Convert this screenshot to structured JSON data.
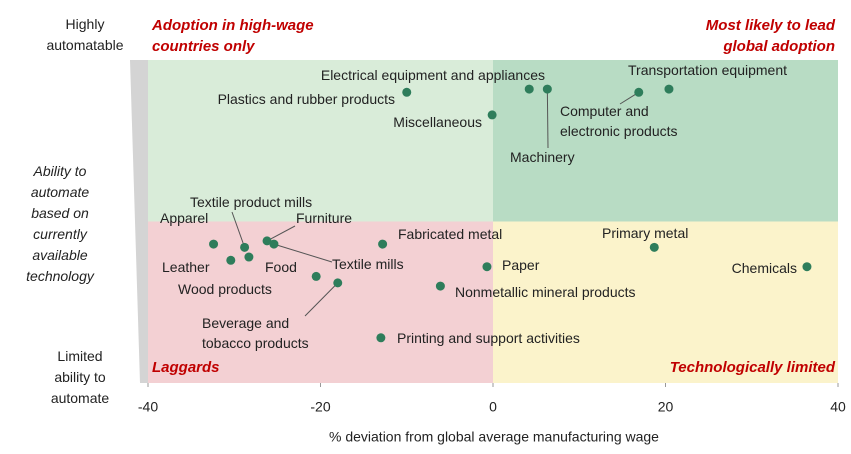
{
  "chart_data": {
    "type": "scatter",
    "xlabel": "% deviation from global average manufacturing wage",
    "xlim": [
      -40,
      40
    ],
    "xticks": [
      -40,
      -20,
      0,
      20,
      40
    ],
    "ylim": [
      0,
      100
    ],
    "color": "#2e7d5b",
    "y_axis_labels": [
      [
        "Highly",
        "automatable"
      ],
      [
        "Ability to",
        "automate",
        "based on",
        "currently",
        "available",
        "technology"
      ],
      [
        "Limited",
        "ability to",
        "automate"
      ]
    ],
    "quadrants": [
      {
        "label": [
          "Adoption in high-wage",
          "countries only"
        ],
        "color": "#d9ecd9"
      },
      {
        "label": [
          "Most likely to lead",
          "global adoption"
        ],
        "color": "#b8dcc4"
      },
      {
        "label": [
          "Laggards"
        ],
        "color": "#f3d0d3"
      },
      {
        "label": [
          "Technologically limited"
        ],
        "color": "#fbf3cb"
      }
    ],
    "point_labels": [
      [
        "Electrical equipment and appliances"
      ],
      [
        "Machinery"
      ],
      [
        "Computer and",
        "electronic products"
      ],
      [
        "Transportation equipment"
      ],
      [
        "Plastics and rubber products"
      ],
      [
        "Miscellaneous"
      ],
      [
        "Apparel"
      ],
      [
        "Textile product mills"
      ],
      [
        "Furniture"
      ],
      [
        "Leather"
      ],
      [
        "Wood products"
      ],
      [
        "Textile mills"
      ],
      [
        "Food"
      ],
      [
        "Beverage and",
        "tobacco products"
      ],
      [
        "Fabricated metal"
      ],
      [
        "Paper"
      ],
      [
        "Nonmetallic mineral products"
      ],
      [
        "Printing and support activities"
      ],
      [
        "Primary metal"
      ],
      [
        "Chemicals"
      ]
    ],
    "x": [
      4.2,
      6.3,
      16.9,
      20.4,
      -10,
      -0.1,
      -32.4,
      -28.8,
      -26.2,
      -30.4,
      -28.3,
      -25.4,
      -20.5,
      -18,
      -12.8,
      -0.7,
      -6.1,
      -13,
      18.7,
      36.4
    ],
    "values": [
      91,
      91,
      90,
      91,
      90,
      83,
      43,
      42,
      44,
      38,
      39,
      43,
      33,
      31,
      43,
      36,
      30,
      14,
      42,
      36
    ]
  }
}
